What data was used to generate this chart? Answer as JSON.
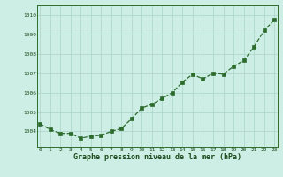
{
  "x": [
    0,
    1,
    2,
    3,
    4,
    5,
    6,
    7,
    8,
    9,
    10,
    11,
    12,
    13,
    14,
    15,
    16,
    17,
    18,
    19,
    20,
    21,
    22,
    23
  ],
  "y": [
    1004.4,
    1004.1,
    1003.9,
    1003.9,
    1003.65,
    1003.75,
    1003.8,
    1004.0,
    1004.15,
    1004.65,
    1005.2,
    1005.4,
    1005.7,
    1006.0,
    1006.55,
    1006.95,
    1006.7,
    1007.0,
    1006.95,
    1007.35,
    1007.65,
    1008.35,
    1009.2,
    1009.75
  ],
  "line_color": "#2d6b2d",
  "marker_color": "#2d6b2d",
  "bg_color": "#cceee4",
  "grid_color": "#aad4c8",
  "xlabel": "Graphe pression niveau de la mer (hPa)",
  "xlabel_color": "#1a4a1a",
  "ylim": [
    1003.2,
    1010.5
  ],
  "yticks": [
    1004,
    1005,
    1006,
    1007,
    1008,
    1009,
    1010
  ],
  "xticks": [
    0,
    1,
    2,
    3,
    4,
    5,
    6,
    7,
    8,
    9,
    10,
    11,
    12,
    13,
    14,
    15,
    16,
    17,
    18,
    19,
    20,
    21,
    22,
    23
  ],
  "xlim": [
    -0.3,
    23.3
  ]
}
